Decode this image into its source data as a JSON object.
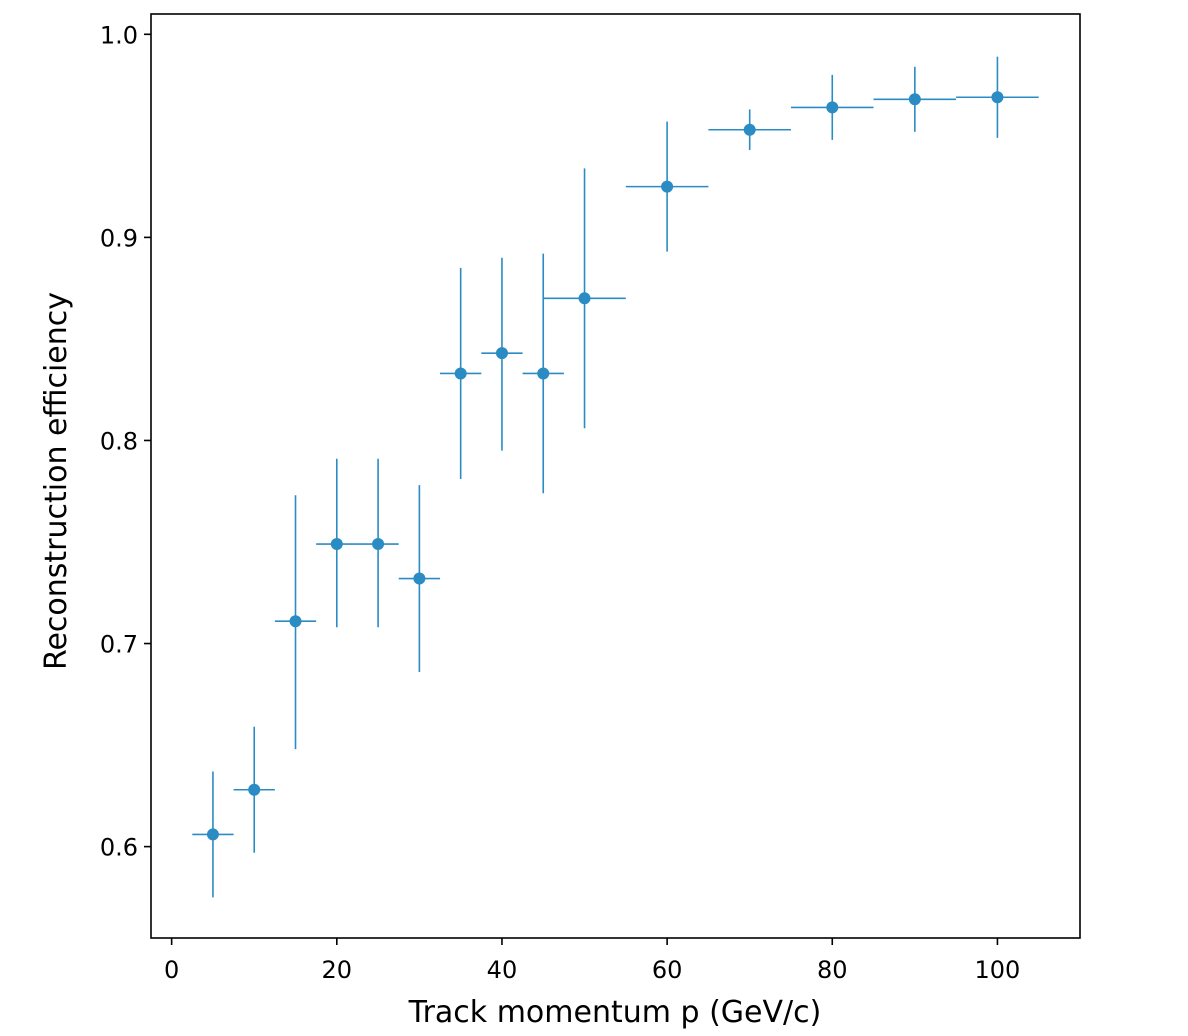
{
  "chart_data": {
    "type": "scatter",
    "title": "",
    "xlabel": "Track momentum p (GeV/c)",
    "ylabel": "Reconstruction efficiency",
    "xlim": [
      -2.5,
      110
    ],
    "ylim": [
      0.555,
      1.01
    ],
    "xticks": [
      0,
      20,
      40,
      60,
      80,
      100
    ],
    "yticks": [
      0.6,
      0.7,
      0.8,
      0.9,
      1.0
    ],
    "xtick_labels": [
      "0",
      "20",
      "40",
      "60",
      "80",
      "100"
    ],
    "ytick_labels": [
      "0.6",
      "0.7",
      "0.8",
      "0.9",
      "1.0"
    ],
    "grid": false,
    "color": "#2b8cc4",
    "series": [
      {
        "x": [
          5,
          10,
          15,
          20,
          25,
          30,
          35,
          40,
          45,
          50,
          60,
          70,
          80,
          90,
          100
        ],
        "y": [
          0.606,
          0.628,
          0.711,
          0.749,
          0.749,
          0.732,
          0.833,
          0.843,
          0.833,
          0.87,
          0.925,
          0.953,
          0.964,
          0.968,
          0.969
        ],
        "x_err": [
          2.5,
          2.5,
          2.5,
          2.5,
          2.5,
          2.5,
          2.5,
          2.5,
          2.5,
          5,
          5,
          5,
          5,
          5,
          5
        ],
        "y_err_low": [
          0.031,
          0.031,
          0.063,
          0.041,
          0.041,
          0.046,
          0.052,
          0.048,
          0.059,
          0.064,
          0.032,
          0.01,
          0.016,
          0.016,
          0.02
        ],
        "y_err_high": [
          0.031,
          0.031,
          0.062,
          0.042,
          0.042,
          0.046,
          0.052,
          0.047,
          0.059,
          0.064,
          0.032,
          0.01,
          0.016,
          0.016,
          0.02
        ]
      }
    ]
  }
}
